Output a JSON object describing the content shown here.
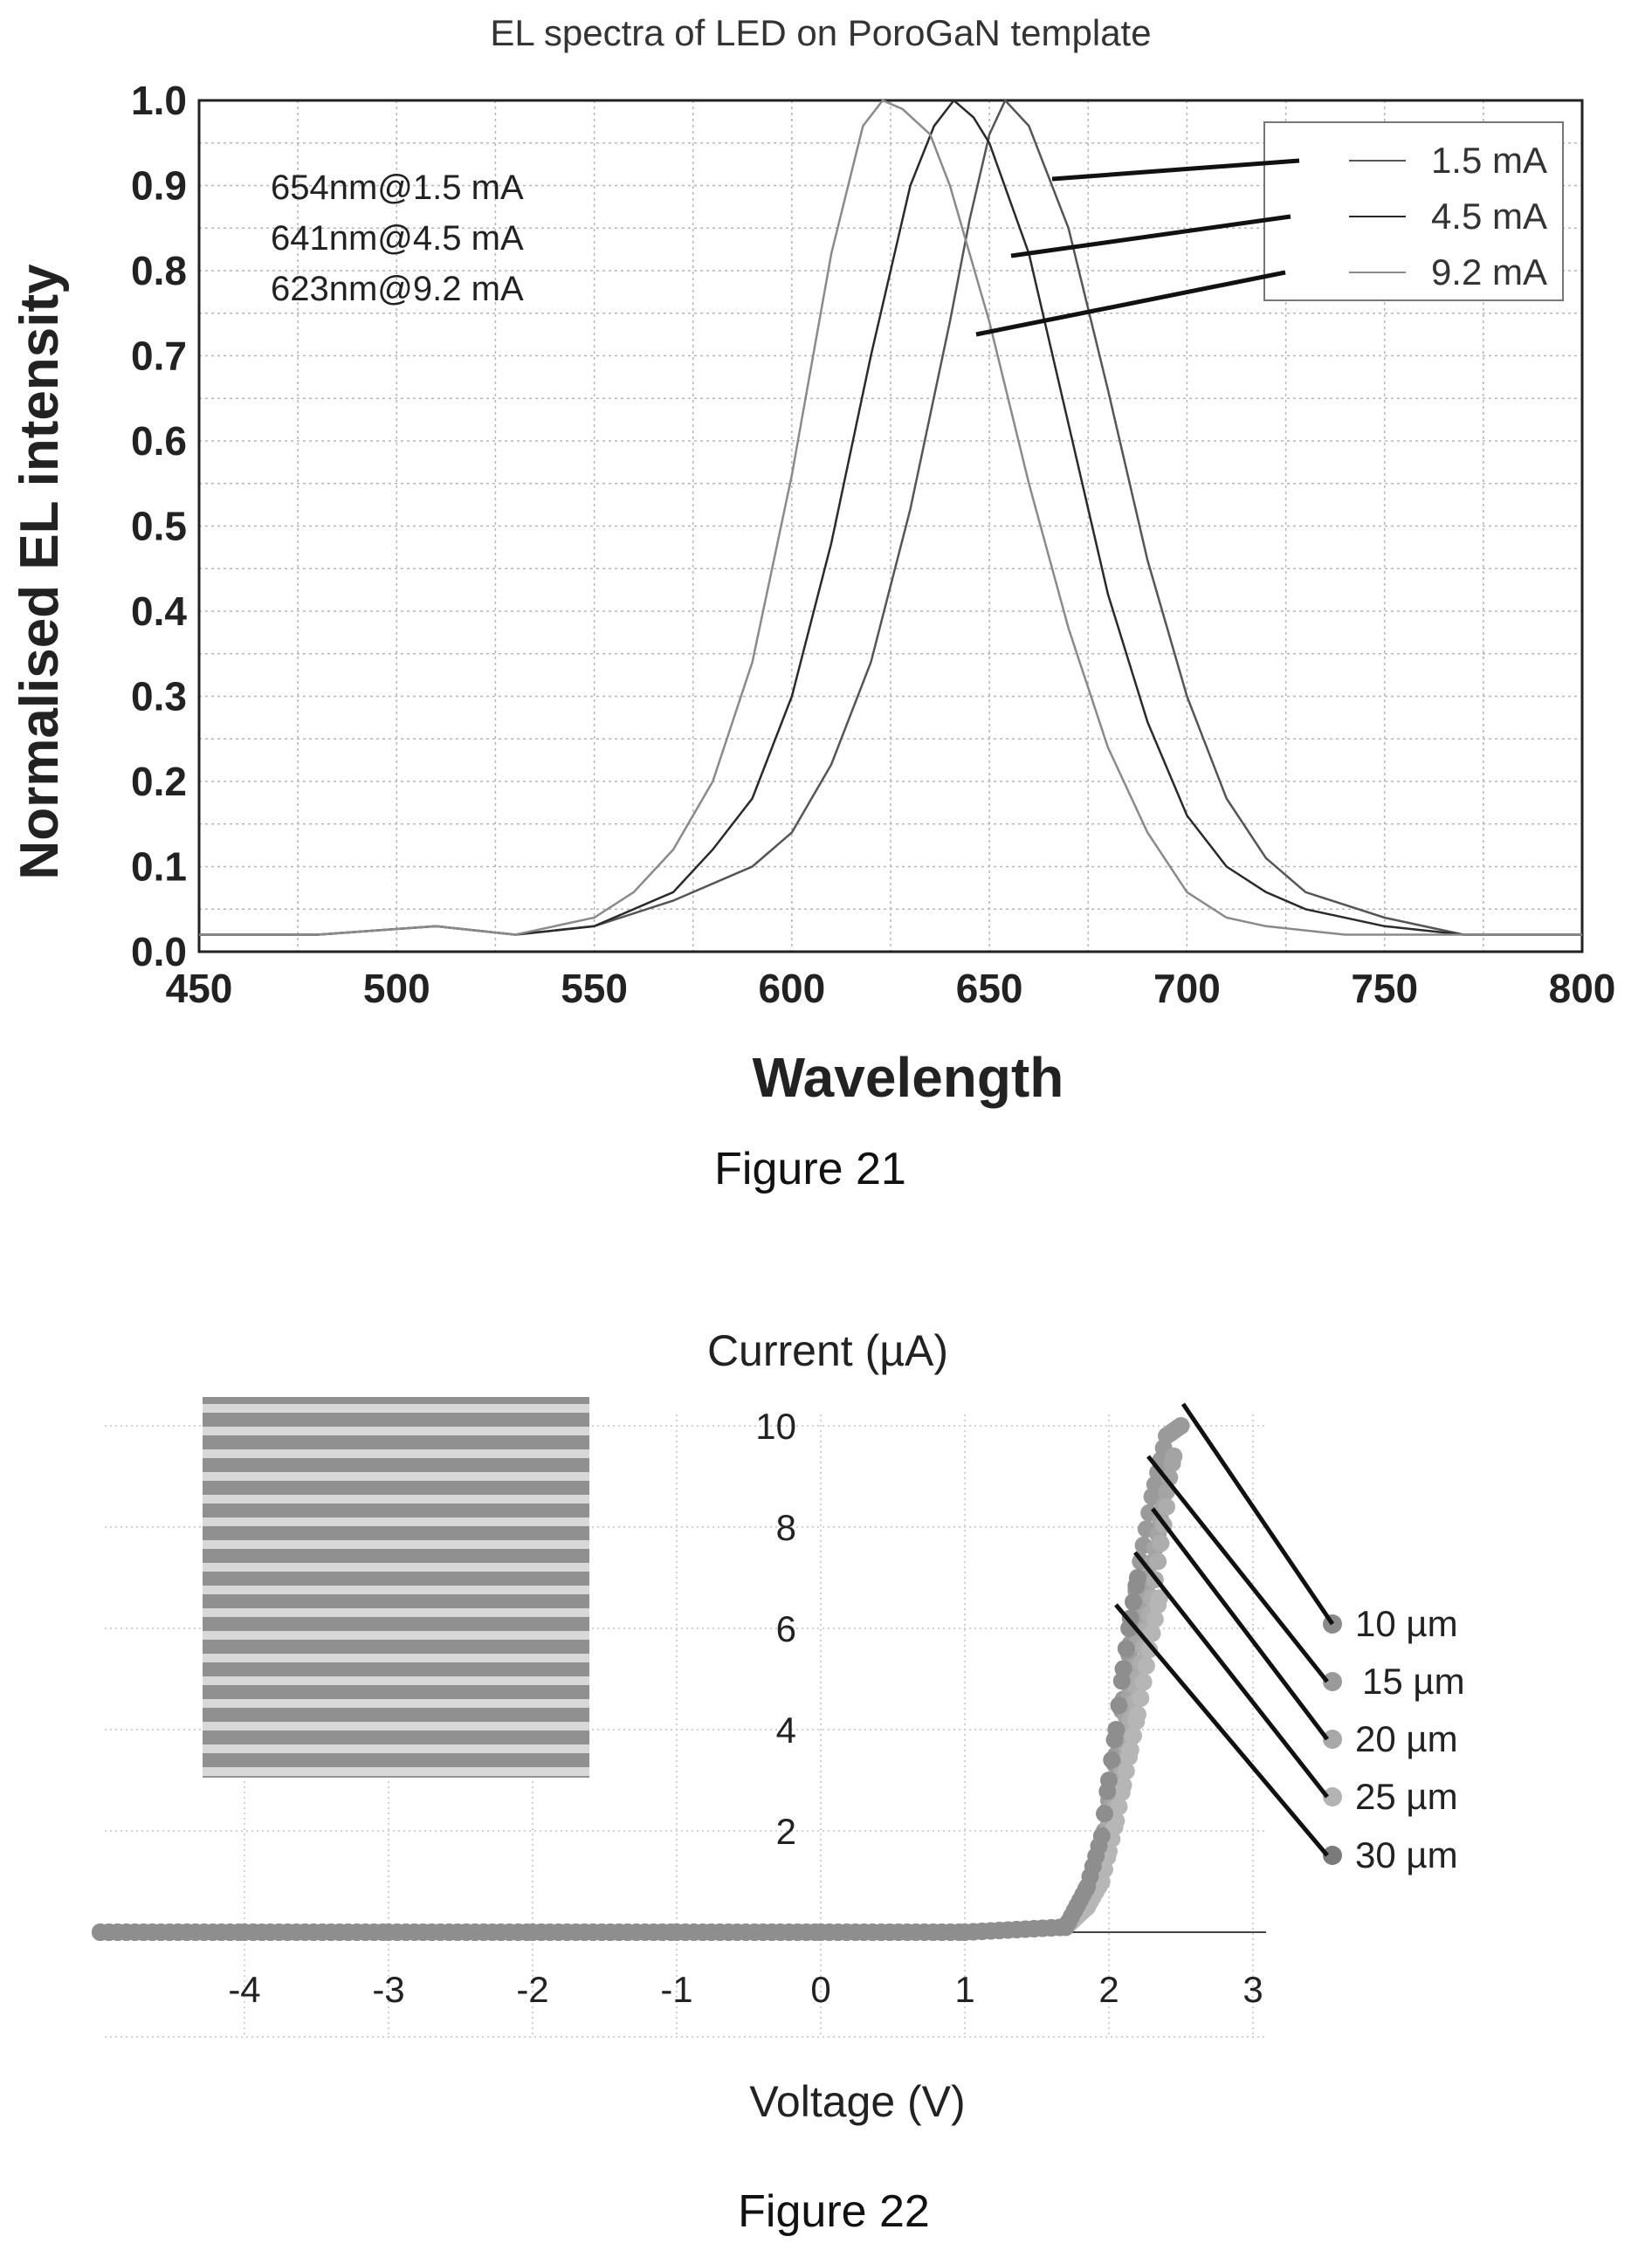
{
  "figure21": {
    "caption": "Figure 21",
    "chart_data": {
      "type": "line",
      "title": "EL spectra of LED on PoroGaN template",
      "xlabel": "Wavelength",
      "ylabel": "Normalised EL intensity",
      "xlim": [
        450,
        800
      ],
      "ylim": [
        0.0,
        1.0
      ],
      "xticks": [
        "450",
        "500",
        "550",
        "600",
        "650",
        "700",
        "750",
        "800"
      ],
      "yticks": [
        "0.0",
        "0.1",
        "0.2",
        "0.3",
        "0.4",
        "0.5",
        "0.6",
        "0.7",
        "0.8",
        "0.9",
        "1.0"
      ],
      "grid": true,
      "legend_position": "top-right",
      "annotations": [
        "654nm@1.5 mA",
        "641nm@4.5 mA",
        "623nm@9.2 mA"
      ],
      "series": [
        {
          "name": "1.5 mA",
          "color": "#555555",
          "x": [
            450,
            480,
            510,
            530,
            550,
            570,
            590,
            600,
            610,
            620,
            630,
            640,
            645,
            650,
            654,
            660,
            670,
            680,
            690,
            700,
            710,
            720,
            730,
            750,
            770,
            800
          ],
          "y": [
            0.02,
            0.02,
            0.03,
            0.02,
            0.03,
            0.06,
            0.1,
            0.14,
            0.22,
            0.34,
            0.52,
            0.74,
            0.86,
            0.96,
            1.0,
            0.97,
            0.85,
            0.66,
            0.46,
            0.3,
            0.18,
            0.11,
            0.07,
            0.04,
            0.02,
            0.02
          ]
        },
        {
          "name": "4.5 mA",
          "color": "#2a2a2a",
          "x": [
            450,
            480,
            510,
            530,
            550,
            570,
            580,
            590,
            600,
            610,
            620,
            630,
            636,
            641,
            646,
            650,
            660,
            670,
            680,
            690,
            700,
            710,
            720,
            730,
            750,
            770,
            800
          ],
          "y": [
            0.02,
            0.02,
            0.03,
            0.02,
            0.03,
            0.07,
            0.12,
            0.18,
            0.3,
            0.48,
            0.7,
            0.9,
            0.97,
            1.0,
            0.98,
            0.95,
            0.82,
            0.62,
            0.42,
            0.27,
            0.16,
            0.1,
            0.07,
            0.05,
            0.03,
            0.02,
            0.02
          ]
        },
        {
          "name": "9.2 mA",
          "color": "#8a8a8a",
          "x": [
            450,
            480,
            510,
            530,
            550,
            560,
            570,
            580,
            590,
            600,
            610,
            618,
            623,
            628,
            635,
            640,
            650,
            660,
            670,
            680,
            690,
            700,
            710,
            720,
            740,
            760,
            780,
            800
          ],
          "y": [
            0.02,
            0.02,
            0.03,
            0.02,
            0.04,
            0.07,
            0.12,
            0.2,
            0.34,
            0.56,
            0.82,
            0.97,
            1.0,
            0.99,
            0.96,
            0.9,
            0.74,
            0.55,
            0.38,
            0.24,
            0.14,
            0.07,
            0.04,
            0.03,
            0.02,
            0.02,
            0.02,
            0.02
          ]
        }
      ]
    }
  },
  "figure22": {
    "caption": "Figure 22",
    "chart_data": {
      "type": "scatter",
      "title": "",
      "xlabel": "Voltage (V)",
      "ylabel": "Current (µA)",
      "xlim": [
        -5,
        3
      ],
      "ylim": [
        -1,
        10
      ],
      "xticks": [
        "-4",
        "-3",
        "-2",
        "-1",
        "0",
        "1",
        "2",
        "3"
      ],
      "yticks": [
        "2",
        "4",
        "6",
        "8",
        "10"
      ],
      "grid": true,
      "legend_position": "right",
      "series": [
        {
          "name": "10 µm",
          "color": "#9a9a9a",
          "x": [
            -5,
            -4,
            -3,
            -2,
            -1,
            0,
            1,
            1.7,
            1.85,
            1.95,
            2.0,
            2.05,
            2.1,
            2.15,
            2.2,
            2.3,
            2.4,
            2.5
          ],
          "y": [
            0,
            0,
            0,
            0,
            0,
            0,
            0,
            0.1,
            0.8,
            1.6,
            2.6,
            3.5,
            4.6,
            5.7,
            7.0,
            8.6,
            9.8,
            10.0
          ]
        },
        {
          "name": "15 µm",
          "color": "#a4a4a4",
          "x": [
            -5,
            -4,
            -3,
            -2,
            -1,
            0,
            1,
            1.7,
            1.85,
            1.95,
            2.0,
            2.05,
            2.1,
            2.15,
            2.2,
            2.3,
            2.4,
            2.45
          ],
          "y": [
            0,
            0,
            0,
            0,
            0,
            0,
            0,
            0.1,
            0.7,
            1.4,
            2.2,
            3.0,
            3.9,
            4.8,
            5.9,
            7.3,
            8.7,
            9.4
          ]
        },
        {
          "name": "20 µm",
          "color": "#adadad",
          "x": [
            -5,
            -4,
            -3,
            -2,
            -1,
            0,
            1,
            1.7,
            1.85,
            1.95,
            2.0,
            2.05,
            2.1,
            2.15,
            2.2,
            2.3,
            2.4
          ],
          "y": [
            0,
            0,
            0,
            0,
            0,
            0,
            0,
            0.1,
            0.6,
            1.2,
            1.9,
            2.6,
            3.4,
            4.2,
            5.0,
            6.6,
            8.4
          ]
        },
        {
          "name": "25 µm",
          "color": "#b6b6b6",
          "x": [
            -5,
            -4,
            -3,
            -2,
            -1,
            0,
            1,
            1.7,
            1.85,
            1.95,
            2.0,
            2.05,
            2.1,
            2.15,
            2.2,
            2.3,
            2.35
          ],
          "y": [
            0,
            0,
            0,
            0,
            0,
            0,
            0,
            0.1,
            0.5,
            1.0,
            1.6,
            2.2,
            2.9,
            3.6,
            4.3,
            5.9,
            6.6
          ]
        },
        {
          "name": "30 µm",
          "color": "#8e8e8e",
          "x": [
            -5,
            -4,
            -3,
            -2,
            -1,
            0,
            1,
            1.7,
            1.85,
            1.95,
            2.0,
            2.05,
            2.1,
            2.15,
            2.2
          ],
          "y": [
            0,
            0,
            0,
            0,
            0,
            0,
            0,
            0.1,
            0.9,
            1.9,
            3.0,
            4.0,
            5.2,
            6.2,
            7.0
          ]
        }
      ]
    }
  }
}
